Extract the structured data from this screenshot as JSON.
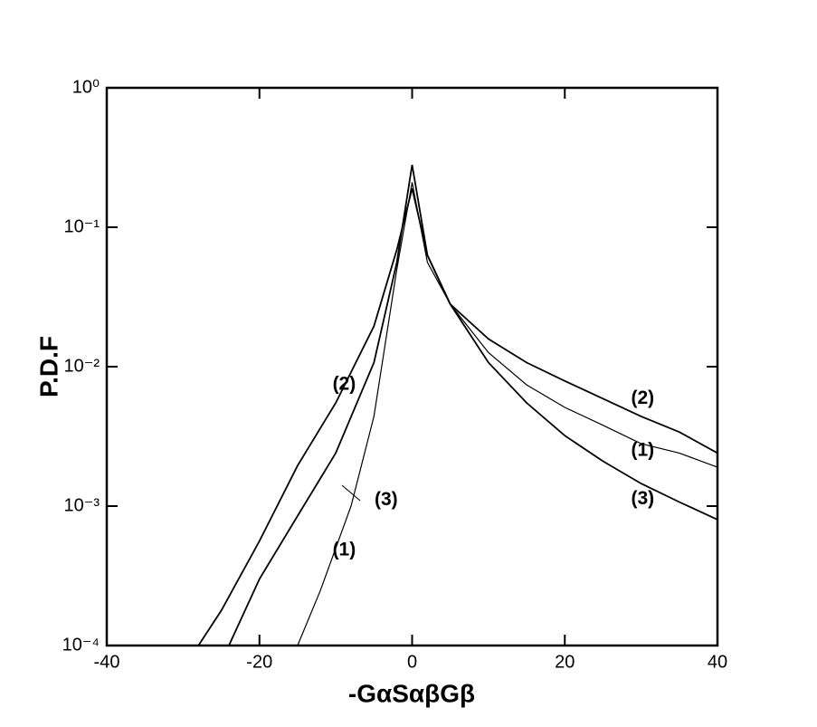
{
  "chart_data": {
    "type": "line",
    "xlabel": "-GαSαβGβ",
    "ylabel": "P.D.F",
    "xlim": [
      -40,
      40
    ],
    "xticks": [
      -40,
      -20,
      0,
      20,
      40
    ],
    "ylim": [
      0.0001,
      1
    ],
    "yscale": "log",
    "yticks": [
      {
        "value": 0.0001,
        "label": "10⁻⁴"
      },
      {
        "value": 0.001,
        "label": "10⁻³"
      },
      {
        "value": 0.01,
        "label": "10⁻²"
      },
      {
        "value": 0.1,
        "label": "10⁻¹"
      },
      {
        "value": 1,
        "label": "10⁰"
      }
    ],
    "series": [
      {
        "color": "#000000",
        "x": [
          -15,
          -12,
          -10,
          -8,
          -5,
          -2,
          0,
          2,
          5,
          10,
          15,
          20,
          25,
          30,
          35,
          40
        ],
        "values": [
          0.0001,
          0.00025,
          0.0005,
          0.001,
          0.0044,
          0.05,
          0.21,
          0.056,
          0.028,
          0.0126,
          0.0074,
          0.0051,
          0.0038,
          0.0028,
          0.0024,
          0.0019
        ]
      },
      {
        "color": "#000000",
        "x": [
          -28,
          -25,
          -20,
          -15,
          -10,
          -5,
          -2,
          0,
          2,
          5,
          10,
          15,
          20,
          25,
          30,
          35,
          40
        ],
        "values": [
          0.0001,
          0.000178,
          0.000562,
          0.00195,
          0.0055,
          0.0195,
          0.069,
          0.19,
          0.063,
          0.028,
          0.0158,
          0.0107,
          0.0079,
          0.0059,
          0.0044,
          0.0034,
          0.0024
        ]
      },
      {
        "color": "#000000",
        "x": [
          -24,
          -20,
          -15,
          -10,
          -5,
          -2,
          0,
          2,
          5,
          10,
          15,
          20,
          25,
          30,
          35,
          40
        ],
        "values": [
          0.0001,
          0.0003,
          0.00085,
          0.0024,
          0.0107,
          0.056,
          0.28,
          0.063,
          0.028,
          0.0107,
          0.0055,
          0.0032,
          0.0021,
          0.00145,
          0.00107,
          0.0008
        ]
      }
    ],
    "annotations": [
      {
        "text": "(2)",
        "x": -8.9,
        "y": 0.0074
      },
      {
        "text": "(3)",
        "x": -3.4,
        "y": 0.0011
      },
      {
        "text": "(1)",
        "x": -8.9,
        "y": 0.00048
      },
      {
        "text": "(2)",
        "x": 30.2,
        "y": 0.0059
      },
      {
        "text": "(1)",
        "x": 30.2,
        "y": 0.0025
      },
      {
        "text": "(3)",
        "x": 30.2,
        "y": 0.00112
      }
    ]
  }
}
